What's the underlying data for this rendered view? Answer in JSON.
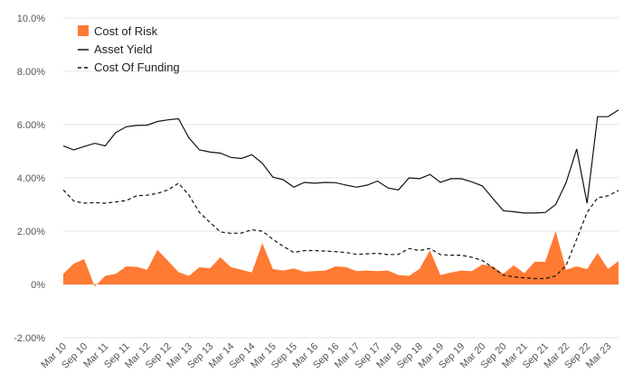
{
  "chart_data": {
    "type": "line",
    "title": "",
    "xlabel": "",
    "ylabel": "",
    "ylim": [
      -0.02,
      0.1
    ],
    "grid": "horizontal",
    "legend": "top-left",
    "yticks": [
      {
        "value": 0.1,
        "label": "10.0%"
      },
      {
        "value": 0.08,
        "label": "8.00%"
      },
      {
        "value": 0.06,
        "label": "6.00%"
      },
      {
        "value": 0.04,
        "label": "4.00%"
      },
      {
        "value": 0.02,
        "label": "2.00%"
      },
      {
        "value": 0.0,
        "label": "0%"
      },
      {
        "value": -0.02,
        "label": "-2.00%"
      }
    ],
    "xticks": [
      {
        "index": 0,
        "label": "Mar 10"
      },
      {
        "index": 2,
        "label": "Sep 10"
      },
      {
        "index": 4,
        "label": "Mar 11"
      },
      {
        "index": 6,
        "label": "Sep 11"
      },
      {
        "index": 8,
        "label": "Mar 12"
      },
      {
        "index": 10,
        "label": "Sep 12"
      },
      {
        "index": 12,
        "label": "Mar 13"
      },
      {
        "index": 14,
        "label": "Sep 13"
      },
      {
        "index": 16,
        "label": "Mar 14"
      },
      {
        "index": 18,
        "label": "Sep 14"
      },
      {
        "index": 20,
        "label": "Mar 15"
      },
      {
        "index": 22,
        "label": "Sep 15"
      },
      {
        "index": 24,
        "label": "Mar 16"
      },
      {
        "index": 26,
        "label": "Sep 16"
      },
      {
        "index": 28,
        "label": "Mar 17"
      },
      {
        "index": 30,
        "label": "Sep 17"
      },
      {
        "index": 32,
        "label": "Mar 18"
      },
      {
        "index": 34,
        "label": "Sep 18"
      },
      {
        "index": 36,
        "label": "Mar 19"
      },
      {
        "index": 38,
        "label": "Sep 19"
      },
      {
        "index": 40,
        "label": "Mar 20"
      },
      {
        "index": 42,
        "label": "Sep 20"
      },
      {
        "index": 44,
        "label": "Mar 21"
      },
      {
        "index": 46,
        "label": "Sep 21"
      },
      {
        "index": 48,
        "label": "Mar 22"
      },
      {
        "index": 50,
        "label": "Sep 22"
      },
      {
        "index": 52,
        "label": "Mar 23"
      }
    ],
    "series": [
      {
        "name": "Cost of Risk",
        "type": "area",
        "color": "#ff7a33",
        "values": [
          0.004,
          0.0078,
          0.0095,
          -0.0008,
          0.0032,
          0.004,
          0.0068,
          0.0066,
          0.0055,
          0.013,
          0.0088,
          0.0046,
          0.0032,
          0.0065,
          0.006,
          0.0102,
          0.0065,
          0.0055,
          0.0045,
          0.0155,
          0.0058,
          0.0052,
          0.006,
          0.0048,
          0.005,
          0.0052,
          0.0068,
          0.0065,
          0.005,
          0.0052,
          0.005,
          0.0052,
          0.0035,
          0.0032,
          0.0058,
          0.0128,
          0.0035,
          0.0045,
          0.0052,
          0.005,
          0.0075,
          0.0068,
          0.004,
          0.0072,
          0.0042,
          0.0085,
          0.0085,
          0.02,
          0.0055,
          0.0068,
          0.0058,
          0.0118,
          0.0058,
          0.0088
        ]
      },
      {
        "name": "Asset Yield",
        "type": "line",
        "color": "#111111",
        "values": [
          0.052,
          0.0505,
          0.0518,
          0.053,
          0.052,
          0.057,
          0.0592,
          0.0597,
          0.0598,
          0.0612,
          0.0618,
          0.0622,
          0.055,
          0.0505,
          0.0497,
          0.0493,
          0.0477,
          0.0473,
          0.0487,
          0.0455,
          0.0403,
          0.0393,
          0.0365,
          0.0383,
          0.038,
          0.0383,
          0.0382,
          0.0373,
          0.0365,
          0.0373,
          0.0388,
          0.0362,
          0.0355,
          0.04,
          0.0397,
          0.0413,
          0.0383,
          0.0397,
          0.0397,
          0.0385,
          0.037,
          0.0323,
          0.0277,
          0.0273,
          0.0268,
          0.0268,
          0.027,
          0.03,
          0.0383,
          0.0508,
          0.0305,
          0.063,
          0.063,
          0.0655
        ]
      },
      {
        "name": "Cost Of Funding",
        "type": "line",
        "dash": true,
        "color": "#111111",
        "values": [
          0.0355,
          0.0313,
          0.0305,
          0.0307,
          0.0305,
          0.031,
          0.0315,
          0.0333,
          0.0335,
          0.0342,
          0.0355,
          0.038,
          0.0335,
          0.027,
          0.0233,
          0.0197,
          0.0192,
          0.0193,
          0.0205,
          0.02,
          0.017,
          0.0143,
          0.012,
          0.0127,
          0.0127,
          0.0125,
          0.0123,
          0.012,
          0.0113,
          0.0115,
          0.0117,
          0.0112,
          0.0113,
          0.0135,
          0.0127,
          0.0135,
          0.0112,
          0.011,
          0.011,
          0.0102,
          0.009,
          0.0063,
          0.0035,
          0.0028,
          0.0025,
          0.0022,
          0.0022,
          0.0032,
          0.0072,
          0.017,
          0.027,
          0.0325,
          0.0333,
          0.0353
        ]
      }
    ]
  }
}
